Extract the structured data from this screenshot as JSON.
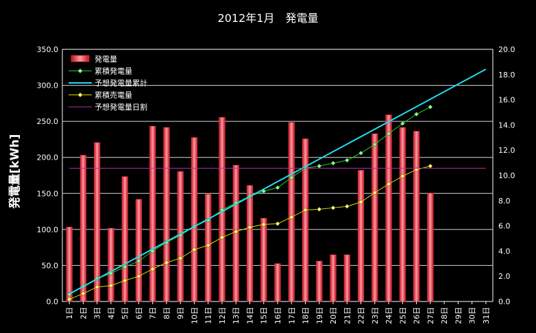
{
  "chart_data": {
    "type": "bar",
    "title": "2012年1月　発電量",
    "ylabel": "発電量[kWh]",
    "y2label": "",
    "ylim": [
      0,
      350
    ],
    "y2lim": [
      0,
      20
    ],
    "yticks": [
      "0.0",
      "50.0",
      "100.0",
      "150.0",
      "200.0",
      "250.0",
      "300.0",
      "350.0"
    ],
    "y2ticks": [
      "0.0",
      "2.0",
      "4.0",
      "6.0",
      "8.0",
      "10.0",
      "12.0",
      "14.0",
      "16.0",
      "18.0",
      "20.0"
    ],
    "categories": [
      "1日",
      "2日",
      "3日",
      "4日",
      "5日",
      "6日",
      "7日",
      "8日",
      "9日",
      "10日",
      "11日",
      "12日",
      "13日",
      "14日",
      "15日",
      "16日",
      "17日",
      "18日",
      "19日",
      "20日",
      "21日",
      "22日",
      "23日",
      "24日",
      "25日",
      "26日",
      "27日",
      "28日",
      "29日",
      "30日",
      "31日"
    ],
    "grid": true,
    "legend_position": "top-left",
    "series": [
      {
        "name": "発電量",
        "kind": "bar",
        "axis": "right",
        "color": "#ff3a4a",
        "values": [
          5.9,
          11.6,
          12.6,
          5.8,
          9.9,
          8.1,
          13.9,
          13.8,
          10.3,
          13.0,
          8.5,
          14.6,
          10.8,
          9.2,
          6.6,
          3.0,
          14.2,
          12.9,
          3.2,
          3.7,
          3.7,
          10.4,
          13.3,
          14.8,
          13.8,
          13.5,
          8.6,
          null,
          null,
          null,
          null
        ]
      },
      {
        "name": "累積発電量",
        "kind": "line",
        "axis": "left",
        "color": "#22cc22",
        "marker": "diamond",
        "marker_color": "#88ff88",
        "values": [
          10,
          21,
          32,
          39,
          48,
          56,
          70,
          82,
          92,
          104,
          113,
          127,
          137,
          146,
          153,
          158,
          172,
          185,
          188,
          192,
          196,
          206,
          218,
          233,
          247,
          260,
          270,
          null,
          null,
          null,
          null
        ]
      },
      {
        "name": "予想発電量累計",
        "kind": "line",
        "axis": "left",
        "color": "#22ddee",
        "values": [
          10.4,
          20.8,
          31.2,
          41.6,
          52.0,
          62.4,
          72.8,
          83.2,
          93.6,
          104.0,
          114.4,
          124.8,
          135.2,
          145.6,
          156.0,
          166.4,
          176.8,
          187.2,
          197.6,
          208.0,
          218.4,
          228.8,
          239.2,
          249.6,
          260.0,
          270.4,
          280.8,
          291.2,
          301.6,
          312.0,
          322.4
        ]
      },
      {
        "name": "累積売電量",
        "kind": "line",
        "axis": "left",
        "color": "#dddd00",
        "marker": "diamond",
        "marker_color": "#ffff66",
        "values": [
          3,
          11,
          20,
          22,
          29,
          35,
          45,
          54,
          60,
          72,
          78,
          89,
          97,
          103,
          107,
          108,
          117,
          127,
          128,
          130,
          132,
          138,
          151,
          163,
          174,
          183,
          188,
          null,
          null,
          null,
          null
        ]
      },
      {
        "name": "予想発電量日割",
        "kind": "line",
        "axis": "left",
        "color": "#aa33aa",
        "values": [
          185,
          185,
          185,
          185,
          185,
          185,
          185,
          185,
          185,
          185,
          185,
          185,
          185,
          185,
          185,
          185,
          185,
          185,
          185,
          185,
          185,
          185,
          185,
          185,
          185,
          185,
          185,
          185,
          185,
          185,
          185
        ]
      }
    ]
  }
}
